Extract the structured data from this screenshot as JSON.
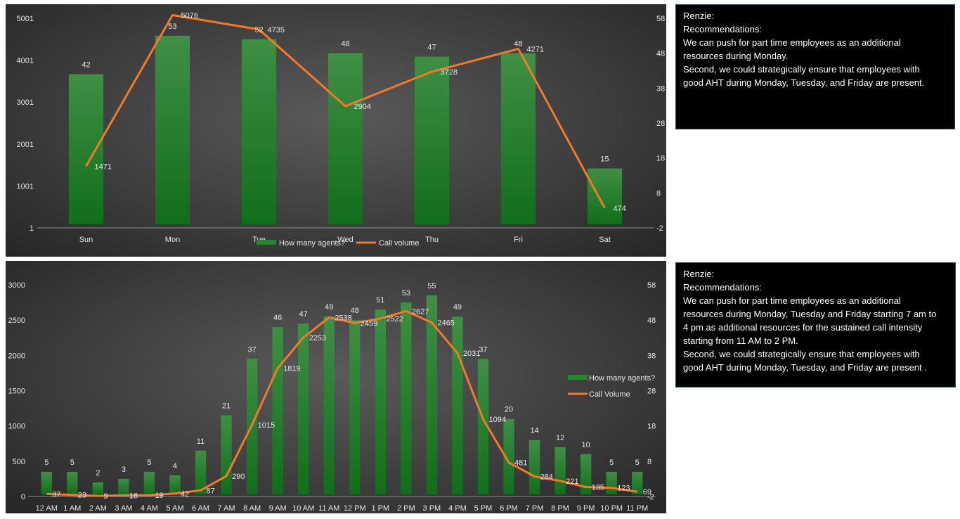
{
  "chart_data": [
    {
      "type": "bar",
      "combo": "bar+line",
      "categories": [
        "Sun",
        "Mon",
        "Tue",
        "Wed",
        "Thu",
        "Fri",
        "Sat"
      ],
      "series": [
        {
          "name": "How many agents?",
          "type": "bar",
          "axis": "right",
          "values": [
            42,
            53,
            52,
            48,
            47,
            48,
            15
          ],
          "color": "#1f8a2a"
        },
        {
          "name": "Call volume",
          "type": "line",
          "axis": "left",
          "values": [
            1471,
            5076,
            4735,
            2904,
            3728,
            4271,
            474
          ],
          "color": "#f07a2a"
        }
      ],
      "y_left_ticks": [
        "1",
        "1001",
        "2001",
        "3001",
        "4001",
        "5001"
      ],
      "y_right_ticks": [
        "-2",
        "8",
        "18",
        "28",
        "38",
        "48",
        "58"
      ],
      "y_left_range": [
        1,
        5001
      ],
      "y_right_range": [
        -2,
        58
      ],
      "legend_position": "bottom",
      "grid": false
    },
    {
      "type": "bar",
      "combo": "bar+line",
      "categories": [
        "12 AM",
        "1 AM",
        "2 AM",
        "3 AM",
        "4 AM",
        "5 AM",
        "6 AM",
        "7 AM",
        "8 AM",
        "9 AM",
        "10 AM",
        "11 AM",
        "12 PM",
        "1 PM",
        "2 PM",
        "3 PM",
        "4 PM",
        "5 PM",
        "6 PM",
        "7 PM",
        "8 PM",
        "9 PM",
        "10 PM",
        "11 PM"
      ],
      "series": [
        {
          "name": "How many agents?",
          "type": "bar",
          "axis": "right",
          "values": [
            5,
            5,
            2,
            3,
            5,
            4,
            11,
            21,
            37,
            46,
            47,
            49,
            48,
            51,
            53,
            55,
            49,
            37,
            20,
            14,
            12,
            10,
            5,
            5
          ],
          "color": "#1f8a2a"
        },
        {
          "name": "Call Volume",
          "type": "line",
          "axis": "left",
          "values": [
            37,
            23,
            9,
            16,
            19,
            42,
            87,
            290,
            1015,
            1819,
            2253,
            2538,
            2459,
            2522,
            2627,
            2465,
            2031,
            1094,
            481,
            284,
            221,
            135,
            123,
            69
          ],
          "color": "#f07a2a"
        }
      ],
      "y_left_ticks": [
        "0",
        "500",
        "1000",
        "1500",
        "2000",
        "2500",
        "3000"
      ],
      "y_right_ticks": [
        "-2",
        "8",
        "18",
        "28",
        "38",
        "48",
        "58"
      ],
      "y_left_range": [
        0,
        3000
      ],
      "y_right_range": [
        -2,
        58
      ],
      "legend_position": "right",
      "grid": false
    }
  ],
  "notes": [
    {
      "author": "Renzie:",
      "heading": "Recommendations:",
      "lines": [
        "We can push for part time employees as an additional",
        "resources during Monday.",
        "Second, we could strategically ensure that  employees with",
        "good AHT during Monday, Tuesday, and Friday are present."
      ]
    },
    {
      "author": "Renzie:",
      "heading": "Recommendations:",
      "lines": [
        "We can push for part time employees as an additional",
        "resources during Monday, Tuesday and Friday starting 7 am to",
        "4 pm as additional resources for the sustained call intensity",
        "starting  from 11 AM to 2 PM.",
        "Second, we could strategically ensure that  employees with",
        "good AHT during Monday, Tuesday, and Friday are present ."
      ]
    }
  ]
}
